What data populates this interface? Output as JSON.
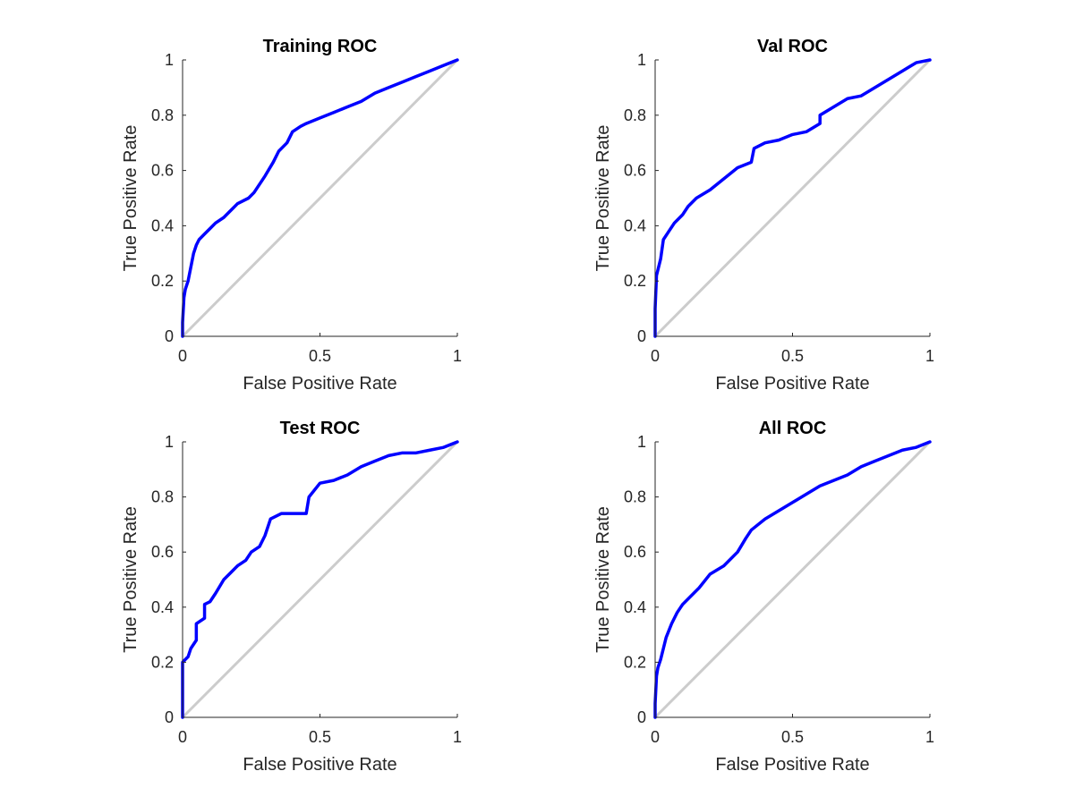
{
  "chart_data": [
    {
      "type": "line",
      "title": "Training ROC",
      "xlabel": "False Positive Rate",
      "ylabel": "True Positive Rate",
      "xlim": [
        0,
        1
      ],
      "ylim": [
        0,
        1
      ],
      "xticks": [
        "0",
        "0.5",
        "1"
      ],
      "yticks": [
        "0",
        "0.2",
        "0.4",
        "0.6",
        "0.8",
        "1"
      ],
      "grid": false,
      "series": [
        {
          "color": "#0000ff",
          "x": [
            0,
            0,
            0.005,
            0.01,
            0.02,
            0.03,
            0.04,
            0.05,
            0.06,
            0.08,
            0.1,
            0.12,
            0.15,
            0.18,
            0.2,
            0.24,
            0.26,
            0.28,
            0.3,
            0.33,
            0.35,
            0.38,
            0.4,
            0.43,
            0.45,
            0.5,
            0.55,
            0.6,
            0.65,
            0.7,
            0.75,
            0.8,
            0.85,
            0.9,
            0.95,
            1.0
          ],
          "y": [
            0,
            0.05,
            0.14,
            0.17,
            0.2,
            0.25,
            0.3,
            0.33,
            0.35,
            0.37,
            0.39,
            0.41,
            0.43,
            0.46,
            0.48,
            0.5,
            0.52,
            0.55,
            0.58,
            0.63,
            0.67,
            0.7,
            0.74,
            0.76,
            0.77,
            0.79,
            0.81,
            0.83,
            0.85,
            0.88,
            0.9,
            0.92,
            0.94,
            0.96,
            0.98,
            1.0
          ]
        },
        {
          "color": "#cccccc",
          "x": [
            0,
            1
          ],
          "y": [
            0,
            1
          ]
        }
      ]
    },
    {
      "type": "line",
      "title": "Val ROC",
      "xlabel": "False Positive Rate",
      "ylabel": "True Positive Rate",
      "xlim": [
        0,
        1
      ],
      "ylim": [
        0,
        1
      ],
      "xticks": [
        "0",
        "0.5",
        "1"
      ],
      "yticks": [
        "0",
        "0.2",
        "0.4",
        "0.6",
        "0.8",
        "1"
      ],
      "grid": false,
      "series": [
        {
          "color": "#0000ff",
          "x": [
            0,
            0,
            0.005,
            0.01,
            0.02,
            0.03,
            0.05,
            0.07,
            0.1,
            0.12,
            0.15,
            0.2,
            0.25,
            0.3,
            0.35,
            0.36,
            0.4,
            0.45,
            0.5,
            0.55,
            0.6,
            0.6,
            0.65,
            0.7,
            0.75,
            0.8,
            0.85,
            0.9,
            0.95,
            1.0
          ],
          "y": [
            0,
            0.1,
            0.22,
            0.24,
            0.28,
            0.35,
            0.38,
            0.41,
            0.44,
            0.47,
            0.5,
            0.53,
            0.57,
            0.61,
            0.63,
            0.68,
            0.7,
            0.71,
            0.73,
            0.74,
            0.77,
            0.8,
            0.83,
            0.86,
            0.87,
            0.9,
            0.93,
            0.96,
            0.99,
            1.0
          ]
        },
        {
          "color": "#cccccc",
          "x": [
            0,
            1
          ],
          "y": [
            0,
            1
          ]
        }
      ]
    },
    {
      "type": "line",
      "title": "Test ROC",
      "xlabel": "False Positive Rate",
      "ylabel": "True Positive Rate",
      "xlim": [
        0,
        1
      ],
      "ylim": [
        0,
        1
      ],
      "xticks": [
        "0",
        "0.5",
        "1"
      ],
      "yticks": [
        "0",
        "0.2",
        "0.4",
        "0.6",
        "0.8",
        "1"
      ],
      "grid": false,
      "series": [
        {
          "color": "#0000ff",
          "x": [
            0,
            0,
            0.02,
            0.03,
            0.05,
            0.05,
            0.08,
            0.08,
            0.1,
            0.12,
            0.15,
            0.17,
            0.2,
            0.23,
            0.25,
            0.28,
            0.3,
            0.32,
            0.36,
            0.45,
            0.46,
            0.5,
            0.55,
            0.6,
            0.65,
            0.7,
            0.75,
            0.8,
            0.85,
            0.9,
            0.95,
            1.0
          ],
          "y": [
            0,
            0.2,
            0.22,
            0.25,
            0.28,
            0.34,
            0.36,
            0.41,
            0.42,
            0.45,
            0.5,
            0.52,
            0.55,
            0.57,
            0.6,
            0.62,
            0.66,
            0.72,
            0.74,
            0.74,
            0.8,
            0.85,
            0.86,
            0.88,
            0.91,
            0.93,
            0.95,
            0.96,
            0.96,
            0.97,
            0.98,
            1.0
          ]
        },
        {
          "color": "#cccccc",
          "x": [
            0,
            1
          ],
          "y": [
            0,
            1
          ]
        }
      ]
    },
    {
      "type": "line",
      "title": "All ROC",
      "xlabel": "False Positive Rate",
      "ylabel": "True Positive Rate",
      "xlim": [
        0,
        1
      ],
      "ylim": [
        0,
        1
      ],
      "xticks": [
        "0",
        "0.5",
        "1"
      ],
      "yticks": [
        "0",
        "0.2",
        "0.4",
        "0.6",
        "0.8",
        "1"
      ],
      "grid": false,
      "series": [
        {
          "color": "#0000ff",
          "x": [
            0,
            0,
            0.005,
            0.01,
            0.02,
            0.03,
            0.04,
            0.06,
            0.08,
            0.1,
            0.13,
            0.16,
            0.2,
            0.25,
            0.3,
            0.33,
            0.35,
            0.4,
            0.45,
            0.5,
            0.55,
            0.6,
            0.65,
            0.7,
            0.75,
            0.8,
            0.85,
            0.9,
            0.95,
            1.0
          ],
          "y": [
            0,
            0.05,
            0.15,
            0.18,
            0.21,
            0.25,
            0.29,
            0.34,
            0.38,
            0.41,
            0.44,
            0.47,
            0.52,
            0.55,
            0.6,
            0.65,
            0.68,
            0.72,
            0.75,
            0.78,
            0.81,
            0.84,
            0.86,
            0.88,
            0.91,
            0.93,
            0.95,
            0.97,
            0.98,
            1.0
          ]
        },
        {
          "color": "#cccccc",
          "x": [
            0,
            1
          ],
          "y": [
            0,
            1
          ]
        }
      ]
    }
  ]
}
